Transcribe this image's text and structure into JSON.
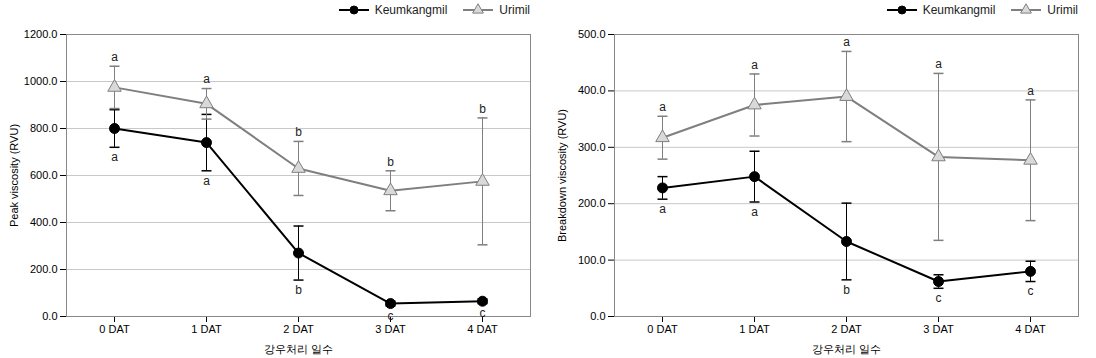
{
  "chart_data": [
    {
      "type": "line",
      "x_label": "강우처리 일수",
      "y_label": "Peak viscosity (RVU)",
      "categories": [
        "0 DAT",
        "1 DAT",
        "2 DAT",
        "3 DAT",
        "4 DAT"
      ],
      "ylim": [
        0,
        1200
      ],
      "yticks": [
        {
          "value": 0,
          "label": "0.0"
        },
        {
          "value": 200,
          "label": "200.0"
        },
        {
          "value": 400,
          "label": "400.0"
        },
        {
          "value": 600,
          "label": "600.0"
        },
        {
          "value": 800,
          "label": "800.0"
        },
        {
          "value": 1000,
          "label": "1000.0"
        },
        {
          "value": 1200,
          "label": "1200.0"
        }
      ],
      "grid": true,
      "legend": "upper right",
      "series": [
        {
          "name": "Keumkangmil",
          "color": "#000000",
          "marker": "circle",
          "values": [
            800,
            740,
            270,
            55,
            65
          ],
          "errors": [
            80,
            120,
            115,
            10,
            10
          ],
          "letters": [
            "a",
            "a",
            "b",
            "c",
            "c"
          ]
        },
        {
          "name": "Urimil",
          "color": "#7f7f7f",
          "marker": "triangle",
          "values": [
            975,
            905,
            630,
            535,
            575
          ],
          "errors": [
            90,
            65,
            115,
            85,
            270
          ],
          "letters": [
            "a",
            "a",
            "b",
            "b",
            "b"
          ]
        }
      ]
    },
    {
      "type": "line",
      "x_label": "강우처리 일수",
      "y_label": "Breakdown viscosity (RVU)",
      "categories": [
        "0 DAT",
        "1 DAT",
        "2 DAT",
        "3 DAT",
        "4 DAT"
      ],
      "ylim": [
        0,
        500
      ],
      "yticks": [
        {
          "value": 0,
          "label": "0.0"
        },
        {
          "value": 100,
          "label": "100.0"
        },
        {
          "value": 200,
          "label": "200.0"
        },
        {
          "value": 300,
          "label": "300.0"
        },
        {
          "value": 400,
          "label": "400.0"
        },
        {
          "value": 500,
          "label": "500.0"
        }
      ],
      "grid": true,
      "legend": "upper right",
      "series": [
        {
          "name": "Keumkangmil",
          "color": "#000000",
          "marker": "circle",
          "values": [
            228,
            248,
            133,
            62,
            80
          ],
          "errors": [
            20,
            45,
            68,
            12,
            18
          ],
          "letters": [
            "a",
            "a",
            "b",
            "c",
            "c"
          ]
        },
        {
          "name": "Urimil",
          "color": "#7f7f7f",
          "marker": "triangle",
          "values": [
            317,
            375,
            390,
            283,
            277
          ],
          "errors": [
            38,
            55,
            80,
            148,
            107
          ],
          "letters": [
            "a",
            "a",
            "a",
            "a",
            "a"
          ]
        }
      ]
    }
  ]
}
